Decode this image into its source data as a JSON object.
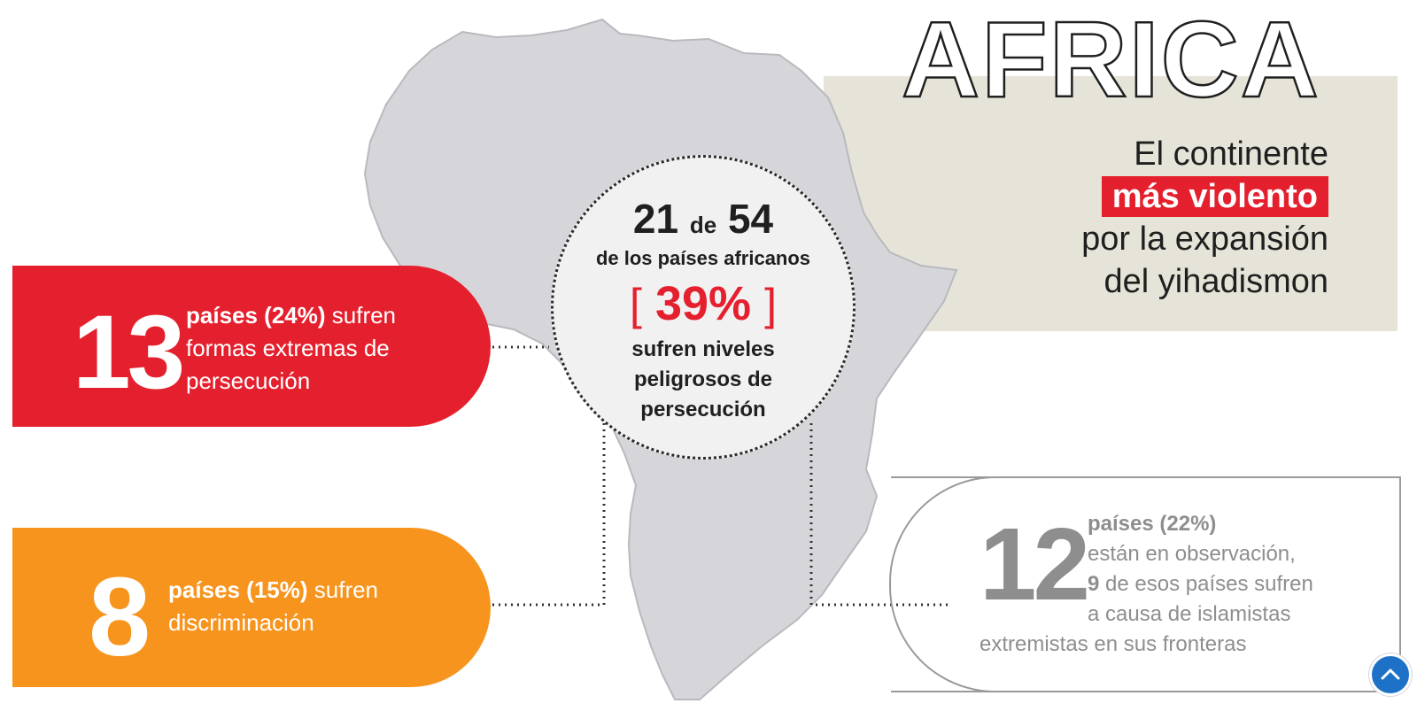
{
  "colors": {
    "red": "#e5202e",
    "orange": "#f7941d",
    "grey_text": "#8e8e8e",
    "beige": "#e6e4d8",
    "map": "#d6d6da",
    "accent": "#1d72c8"
  },
  "header": {
    "title": "AFRICA",
    "subtitle_line1": "El continente",
    "subtitle_highlight": "más violento",
    "subtitle_line3": "por la expansión",
    "subtitle_line4": "del yihadismon"
  },
  "center": {
    "count": "21",
    "de": "de",
    "total": "54",
    "desc": "de los países africanos",
    "bracket_left": "[",
    "percent": "39%",
    "bracket_right": "]",
    "line1": "sufren niveles",
    "line2": "peligrosos de",
    "line3": "persecución"
  },
  "extreme": {
    "number": "13",
    "countries": "países (24%)",
    "line1_rest": " sufren",
    "line2": "formas extremas de",
    "line3": "persecución"
  },
  "discrimination": {
    "number": "8",
    "countries": "países  (15%)",
    "line1_rest": " sufren",
    "line2": "discriminación"
  },
  "observation": {
    "number": "12",
    "countries": "países",
    "pct": " (22%)",
    "line2": "están en observación,",
    "nine": "9",
    "line3_rest": " de esos países sufren",
    "line4": "a causa de islamistas",
    "line5": "extremistas en sus fronteras"
  },
  "scroll_top": {
    "icon": "chevron-up-icon"
  }
}
